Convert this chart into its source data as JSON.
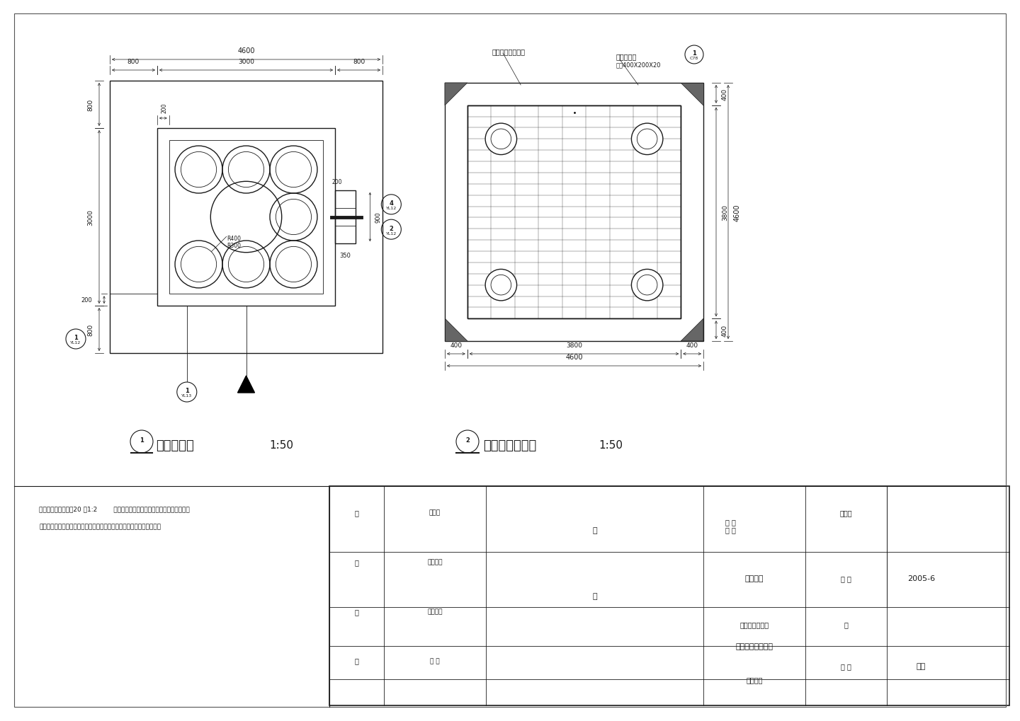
{
  "bg_color": "#ffffff",
  "line_color": "#1a1a1a",
  "title1": "亭区平面图",
  "title2": "亭区铺装平面图",
  "scale": "1:50",
  "notes_line1": "说明：砼亭柱表面以20 厚1:2        水泥砂浆找平，然后喷末黄色仿真石漆饰面。",
  "notes_line2": "亭所有木作工程？除胶合板外？均刷油底漆一遍，表面涂红樟色漆二遍。",
  "tb_project": "入口广场环境绿化",
  "tb_unit": "兴建单位",
  "tb_date_label": "日 期",
  "tb_date": "2005-6",
  "tb_sheet_label": "图 幅",
  "tb_sheet": "图纸",
  "tb_job_label": "业务号",
  "tb_draw1": "亭平面图",
  "tb_draw2": "亭区铺装平面图",
  "tb_role1": "定",
  "tb_role2": "核",
  "tb_role3": "校",
  "tb_role4": "拟",
  "tb_resp1": "总负责",
  "tb_resp2": "工程负责",
  "tb_resp3": "工程负责",
  "tb_resp4": "设 计",
  "tb_name1": "肖",
  "tb_name2": "察",
  "mat1": "烧面芝麻白花岗岩",
  "mat2": "青石板铺地",
  "mat2_spec": "规格400X200X20",
  "label_R400": "R400",
  "label_R300": "R300"
}
